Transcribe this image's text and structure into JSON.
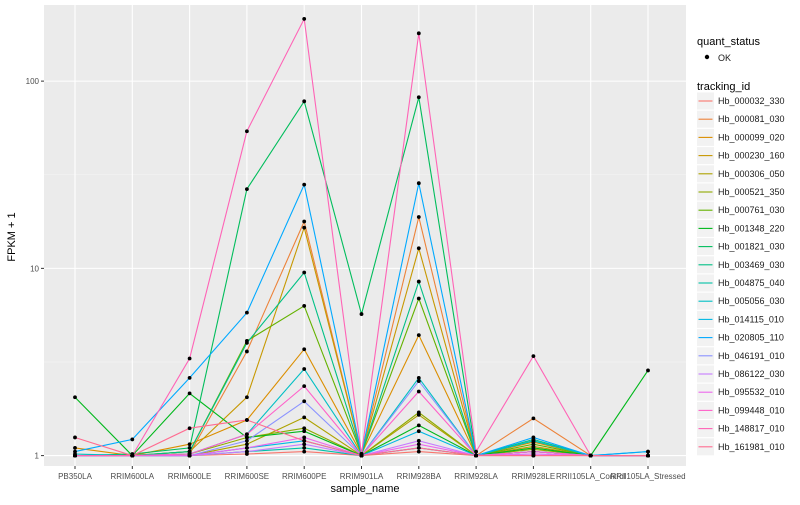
{
  "chart_data": {
    "type": "line",
    "y_scale": "log",
    "y_transform": "FPKM + 1",
    "xlabel": "sample_name",
    "ylabel": "FPKM + 1",
    "ylim": [
      0.88,
      255
    ],
    "y_ticks": [
      1,
      10,
      100
    ],
    "y_tick_labels": [
      "1",
      "10",
      "100"
    ],
    "categories": [
      "PB350LA",
      "RRIM600LA",
      "RRIM600LE",
      "RRIM600SE",
      "RRIM600PE",
      "RRIM901LA",
      "RRIM928BA",
      "RRIM928LA",
      "RRIM928LE",
      "RRII105LA_Control",
      "RRII105LA_Stressed"
    ],
    "x_tick_labels": [
      "PB350LA",
      "RRIM600LA",
      "RRIM600LE",
      "RRIM600SE",
      "RRIM600PE",
      "RRIM901LA",
      "RRIM928BA",
      "RRIM928LA",
      "RRIM928LE",
      "RRII105LA_Control",
      "RRII105LA_Stressed"
    ],
    "grid": true,
    "legend_position": "right",
    "point_legend": {
      "title": "quant_status",
      "label": "OK"
    },
    "color_legend_title": "tracking_id",
    "series": [
      {
        "name": "Hb_000032_330",
        "color": "#F8766D",
        "values": [
          1.0,
          1.0,
          1.0,
          1.02,
          1.05,
          1.0,
          1.05,
          1.0,
          1.0,
          1.0,
          1.0
        ]
      },
      {
        "name": "Hb_000081_030",
        "color": "#EC8239",
        "values": [
          1.0,
          1.0,
          1.02,
          3.6,
          17.8,
          1.02,
          18.8,
          1.0,
          1.58,
          1.0,
          1.0
        ]
      },
      {
        "name": "Hb_000099_020",
        "color": "#DB8E00",
        "values": [
          1.1,
          1.0,
          1.15,
          1.55,
          3.7,
          1.02,
          4.4,
          1.0,
          1.18,
          1.0,
          1.0
        ]
      },
      {
        "name": "Hb_000230_160",
        "color": "#C79800",
        "values": [
          1.0,
          1.0,
          1.05,
          2.05,
          16.5,
          1.02,
          12.8,
          1.0,
          1.12,
          1.0,
          1.0
        ]
      },
      {
        "name": "Hb_000306_050",
        "color": "#AEA200",
        "values": [
          1.0,
          1.0,
          1.0,
          1.15,
          1.6,
          1.0,
          1.65,
          1.0,
          1.05,
          1.0,
          1.0
        ]
      },
      {
        "name": "Hb_000521_350",
        "color": "#8FAA00",
        "values": [
          1.0,
          1.0,
          1.02,
          1.25,
          1.4,
          1.0,
          1.7,
          1.0,
          1.08,
          1.0,
          1.0
        ]
      },
      {
        "name": "Hb_000761_030",
        "color": "#64B200",
        "values": [
          1.0,
          1.0,
          1.05,
          4.1,
          6.3,
          1.02,
          6.9,
          1.0,
          1.15,
          1.0,
          1.0
        ]
      },
      {
        "name": "Hb_001348_220",
        "color": "#00B81B",
        "values": [
          2.05,
          1.0,
          2.15,
          1.25,
          1.35,
          1.0,
          1.45,
          1.0,
          1.1,
          1.0,
          2.85
        ]
      },
      {
        "name": "Hb_001821_030",
        "color": "#00BD5C",
        "values": [
          1.0,
          1.02,
          1.1,
          26.5,
          78.0,
          5.7,
          82.0,
          1.0,
          1.2,
          1.0,
          1.0
        ]
      },
      {
        "name": "Hb_003469_030",
        "color": "#00C085",
        "values": [
          1.0,
          1.0,
          1.05,
          4.0,
          9.5,
          1.02,
          8.5,
          1.0,
          1.22,
          1.0,
          1.0
        ]
      },
      {
        "name": "Hb_004875_040",
        "color": "#00C1A7",
        "values": [
          1.0,
          1.0,
          1.0,
          1.05,
          1.1,
          1.0,
          1.1,
          1.0,
          1.05,
          1.0,
          1.0
        ]
      },
      {
        "name": "Hb_005056_030",
        "color": "#00BFC4",
        "values": [
          1.02,
          1.0,
          1.02,
          1.3,
          2.9,
          1.0,
          2.6,
          1.0,
          1.2,
          1.0,
          1.05
        ]
      },
      {
        "name": "Hb_014115_010",
        "color": "#00B8E3",
        "values": [
          1.0,
          1.0,
          1.0,
          1.1,
          1.2,
          1.0,
          1.35,
          1.0,
          1.05,
          1.0,
          1.0
        ]
      },
      {
        "name": "Hb_020805_110",
        "color": "#00A9FF",
        "values": [
          1.05,
          1.22,
          2.6,
          5.8,
          28.0,
          1.02,
          28.5,
          1.0,
          1.25,
          1.0,
          1.05
        ]
      },
      {
        "name": "Hb_046191_010",
        "color": "#8B93FF",
        "values": [
          1.0,
          1.0,
          1.0,
          1.2,
          1.95,
          1.0,
          2.5,
          1.0,
          1.05,
          1.0,
          1.0
        ]
      },
      {
        "name": "Hb_086122_030",
        "color": "#C77CFF",
        "values": [
          1.0,
          1.0,
          1.0,
          1.05,
          1.15,
          1.0,
          1.2,
          1.0,
          1.02,
          1.0,
          1.0
        ]
      },
      {
        "name": "Hb_095532_010",
        "color": "#ED68ED",
        "values": [
          1.0,
          1.0,
          1.0,
          1.1,
          1.25,
          1.0,
          1.15,
          1.0,
          1.02,
          1.0,
          1.0
        ]
      },
      {
        "name": "Hb_099448_010",
        "color": "#FF61C9",
        "values": [
          1.0,
          1.0,
          1.02,
          1.3,
          2.35,
          1.0,
          2.2,
          1.0,
          1.05,
          1.0,
          1.0
        ]
      },
      {
        "name": "Hb_148817_010",
        "color": "#FF63B6",
        "values": [
          1.0,
          1.0,
          3.3,
          54.0,
          215.0,
          1.02,
          180.0,
          1.05,
          3.4,
          1.0,
          1.0
        ]
      },
      {
        "name": "Hb_161981_010",
        "color": "#FF6C91",
        "values": [
          1.25,
          1.0,
          1.4,
          1.55,
          1.2,
          1.0,
          1.1,
          1.0,
          1.0,
          1.0,
          1.0
        ]
      }
    ]
  }
}
